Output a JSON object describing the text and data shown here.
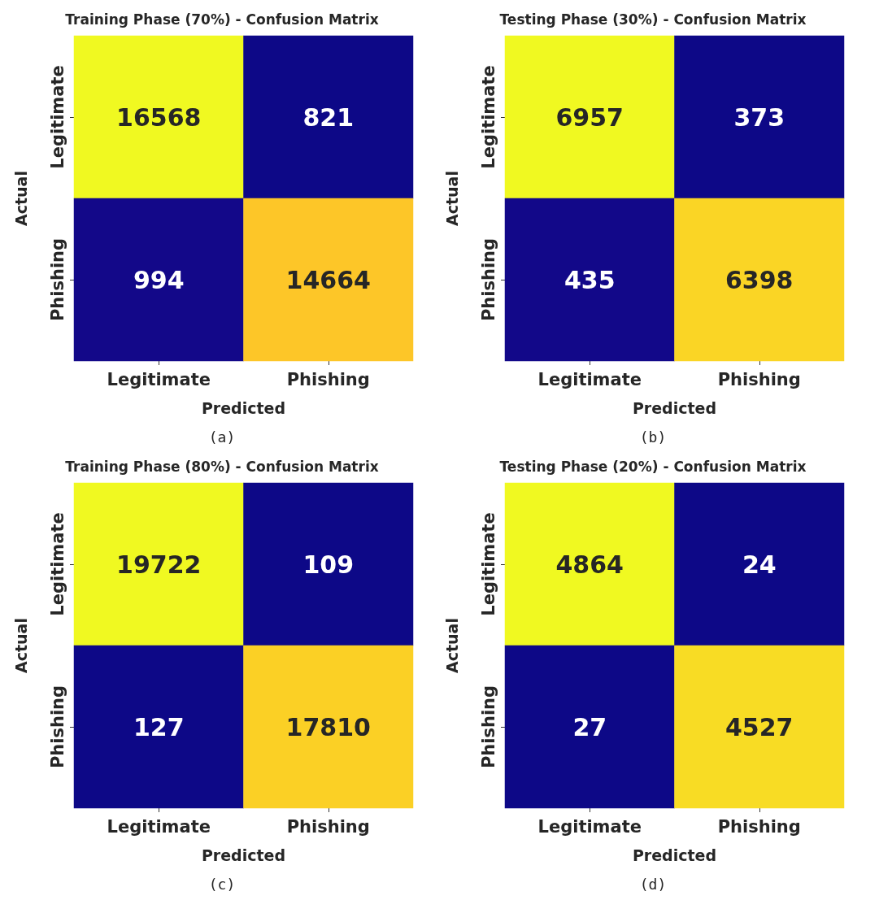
{
  "chart_data": [
    {
      "type": "heatmap",
      "title": "Training Phase (70%) - Confusion Matrix",
      "xlabel": "Predicted",
      "ylabel": "Actual",
      "categories": [
        "Legitimate",
        "Phishing"
      ],
      "y_categories": [
        "Legitimate",
        "Phishing"
      ],
      "cells": [
        [
          16568,
          821
        ],
        [
          994,
          14664
        ]
      ],
      "data_labels": true,
      "annotations": [
        "(a)"
      ]
    },
    {
      "type": "heatmap",
      "title": "Testing Phase (30%) - Confusion Matrix",
      "xlabel": "Predicted",
      "ylabel": "Actual",
      "categories": [
        "Legitimate",
        "Phishing"
      ],
      "y_categories": [
        "Legitimate",
        "Phishing"
      ],
      "cells": [
        [
          6957,
          373
        ],
        [
          435,
          6398
        ]
      ],
      "data_labels": true,
      "annotations": [
        "(b)"
      ]
    },
    {
      "type": "heatmap",
      "title": "Training Phase (80%) - Confusion Matrix",
      "xlabel": "Predicted",
      "ylabel": "Actual",
      "categories": [
        "Legitimate",
        "Phishing"
      ],
      "y_categories": [
        "Legitimate",
        "Phishing"
      ],
      "cells": [
        [
          19722,
          109
        ],
        [
          127,
          17810
        ]
      ],
      "data_labels": true,
      "annotations": [
        "(c)"
      ]
    },
    {
      "type": "heatmap",
      "title": "Testing Phase (20%) - Confusion Matrix",
      "xlabel": "Predicted",
      "ylabel": "Actual",
      "categories": [
        "Legitimate",
        "Phishing"
      ],
      "y_categories": [
        "Legitimate",
        "Phishing"
      ],
      "cells": [
        [
          4864,
          24
        ],
        [
          27,
          4527
        ]
      ],
      "data_labels": true,
      "annotations": [
        "(d)"
      ]
    }
  ]
}
